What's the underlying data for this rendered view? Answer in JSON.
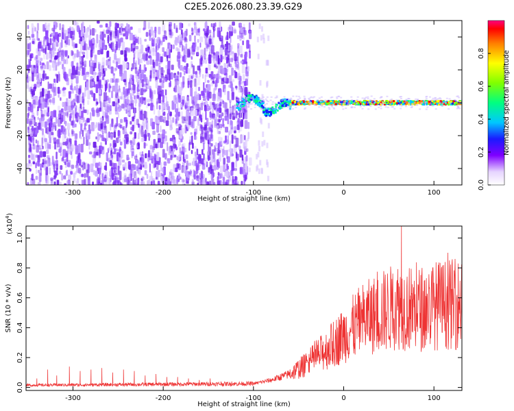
{
  "title": "C2E5.2026.080.23.39.G29",
  "chart_data": [
    {
      "type": "heatmap",
      "xlabel": "Height of straight line (km)",
      "ylabel": "Frequency (Hz)",
      "xlim": [
        -352,
        131
      ],
      "ylim": [
        -50,
        50
      ],
      "xticks": [
        -300,
        -200,
        -100,
        0,
        100
      ],
      "xtick_labels": [
        "-300",
        "-200",
        "-100",
        "0",
        "100"
      ],
      "yticks": [
        -40,
        -20,
        0,
        20,
        40
      ],
      "ytick_labels": [
        "-40",
        "-20",
        "0",
        "20",
        "40"
      ],
      "description_values": {
        "noise_region_x": [
          -352,
          -100
        ],
        "noise_amplitude_range": [
          0.05,
          0.2
        ],
        "signal_x": [
          -120,
          131
        ],
        "signal_frequency_hz": 0,
        "signal_amplitude_range": [
          0.3,
          0.95
        ]
      },
      "colorbar": {
        "label": "Normalized spectral amplitude",
        "range": [
          0,
          1
        ],
        "ticks": [
          0.0,
          0.2,
          0.4,
          0.6,
          0.8
        ],
        "tick_labels": [
          "0.0",
          "0.2",
          "0.4",
          "0.6",
          "0.8"
        ]
      }
    },
    {
      "type": "line",
      "xlabel": "Height of straight line (km)",
      "ylabel": "SNR (10 * v/v)",
      "scale_label": "(x10",
      "scale_exp": "4",
      "scale_close": ")",
      "xlim": [
        -352,
        131
      ],
      "ylim": [
        -0.02,
        1.08
      ],
      "xticks": [
        -300,
        -200,
        -100,
        0,
        100
      ],
      "xtick_labels": [
        "-300",
        "-200",
        "-100",
        "0",
        "100"
      ],
      "yticks": [
        0.0,
        0.2,
        0.4,
        0.6,
        0.8,
        1.0
      ],
      "ytick_labels": [
        "0.0",
        "0.2",
        "0.4",
        "0.6",
        "0.8",
        "1.0"
      ],
      "color": "#ee3333",
      "trend": {
        "x": [
          -352,
          -100,
          -80,
          -60,
          -40,
          -20,
          0,
          20,
          40,
          60,
          80,
          100,
          131
        ],
        "y": [
          0.015,
          0.025,
          0.05,
          0.09,
          0.16,
          0.25,
          0.35,
          0.45,
          0.5,
          0.55,
          0.52,
          0.55,
          0.56
        ]
      },
      "spikes": {
        "x": [
          -340,
          -328,
          -318,
          -304,
          -292,
          -280,
          -268,
          -256,
          -244,
          -232,
          -220,
          -208,
          -196,
          -184,
          -172,
          -160,
          -148,
          -136,
          -124,
          -112
        ],
        "y": [
          0.06,
          0.12,
          0.08,
          0.14,
          0.11,
          0.12,
          0.13,
          0.1,
          0.12,
          0.11,
          0.08,
          0.09,
          0.07,
          0.07,
          0.06,
          0.05,
          0.06,
          0.04,
          0.04,
          0.03
        ]
      },
      "peak": {
        "x": 64,
        "y": 1.08
      }
    }
  ]
}
